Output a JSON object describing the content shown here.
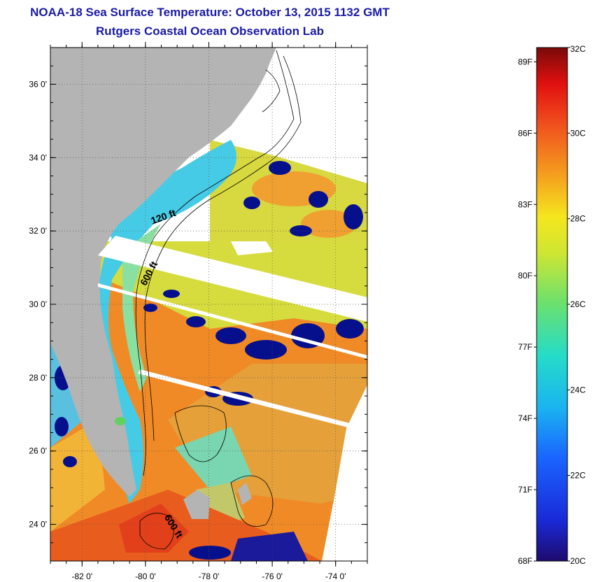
{
  "header": {
    "title": "NOAA-18 Sea Surface Temperature:  October 13, 2015 1132 GMT",
    "subtitle": "Rutgers Coastal Ocean Observation Lab"
  },
  "map": {
    "lon_range": [
      -83,
      -73
    ],
    "lat_range": [
      23,
      37
    ],
    "lat_ticks": [
      {
        "value": 24,
        "label": "24 0'"
      },
      {
        "value": 26,
        "label": "26 0'"
      },
      {
        "value": 28,
        "label": "28 0'"
      },
      {
        "value": 30,
        "label": "30 0'"
      },
      {
        "value": 32,
        "label": "32 0'"
      },
      {
        "value": 34,
        "label": "34 0'"
      },
      {
        "value": 36,
        "label": "36 0'"
      }
    ],
    "lon_ticks": [
      {
        "value": -82,
        "label": "-82 0'"
      },
      {
        "value": -80,
        "label": "-80 0'"
      },
      {
        "value": -78,
        "label": "-78 0'"
      },
      {
        "value": -76,
        "label": "-76 0'"
      },
      {
        "value": -74,
        "label": "-74 0'"
      }
    ],
    "contour_labels": [
      {
        "text": "120 ft",
        "lon": -79.4,
        "lat": 32.3,
        "rotate": -20
      },
      {
        "text": "600 ft",
        "lon": -79.8,
        "lat": 30.8,
        "rotate": -62
      },
      {
        "text": "600 ft",
        "lon": -79.2,
        "lat": 23.9,
        "rotate": 58
      }
    ],
    "colors": {
      "land": "#b4b4b4",
      "cloud": "#07108c",
      "warm": "#f4902a",
      "shelf": "#4ad0e6",
      "mid": "#c6e040"
    }
  },
  "colorbar": {
    "range_c": [
      20,
      32
    ],
    "celsius_ticks": [
      {
        "value": 32,
        "label": "32C"
      },
      {
        "value": 30,
        "label": "30C"
      },
      {
        "value": 28,
        "label": "28C"
      },
      {
        "value": 26,
        "label": "26C"
      },
      {
        "value": 24,
        "label": "24C"
      },
      {
        "value": 22,
        "label": "22C"
      },
      {
        "value": 20,
        "label": "20C"
      }
    ],
    "fahrenheit_ticks": [
      {
        "value": 89,
        "label": "89F"
      },
      {
        "value": 86,
        "label": "86F"
      },
      {
        "value": 83,
        "label": "83F"
      },
      {
        "value": 80,
        "label": "80F"
      },
      {
        "value": 77,
        "label": "77F"
      },
      {
        "value": 74,
        "label": "74F"
      },
      {
        "value": 71,
        "label": "71F"
      },
      {
        "value": 68,
        "label": "68F"
      }
    ]
  }
}
